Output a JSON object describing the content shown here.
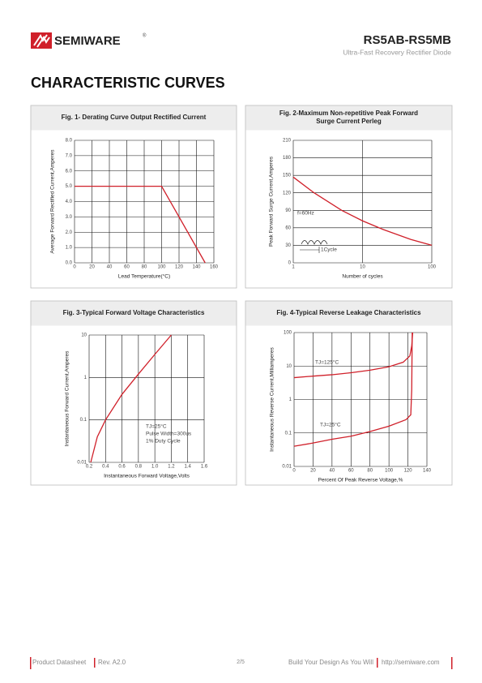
{
  "header": {
    "brand": "SEMIWARE",
    "registered": "®",
    "part": "RS5AB-RS5MB",
    "subtitle": "Ultra-Fast Recovery Rectifier Diode"
  },
  "section_title": "CHARACTERISTIC CURVES",
  "chart_data": [
    {
      "type": "line",
      "title": [
        "Fig. 1- Derating Curve Output Rectified Current"
      ],
      "xlabel": "Lead Temperature(°C)",
      "ylabel": "Average Forward Rectified Current,Amperes",
      "xlim": [
        0,
        160
      ],
      "ylim": [
        0,
        8
      ],
      "xticks": [
        0,
        20,
        40,
        60,
        80,
        100,
        120,
        140,
        160
      ],
      "yticks": [
        {
          "value": 0,
          "label": "0.0"
        },
        {
          "value": 1,
          "label": "1.0"
        },
        {
          "value": 2,
          "label": "2.0"
        },
        {
          "value": 3,
          "label": "3.0"
        },
        {
          "value": 4,
          "label": "4.0"
        },
        {
          "value": 5,
          "label": "5.0"
        },
        {
          "value": 6,
          "label": "6.0"
        },
        {
          "value": 7,
          "label": "7.0"
        },
        {
          "value": 8,
          "label": "8.0"
        }
      ],
      "grid": true,
      "series": [
        {
          "color": "#d0202a",
          "x": [
            0,
            100,
            150
          ],
          "values": [
            5,
            5,
            0
          ]
        }
      ],
      "annotations": []
    },
    {
      "type": "line",
      "title": [
        "Fig. 2-Maximum Non-repetitive Peak Forward",
        "Surge Current Perleg"
      ],
      "xlabel": "Number of cycles",
      "ylabel": "Peak Forward Surge Current,Amperes",
      "xscale": "log",
      "xlim": [
        1,
        100
      ],
      "ylim": [
        0,
        210
      ],
      "xticks": [
        1,
        10,
        100
      ],
      "yticks": [
        0,
        30,
        60,
        90,
        120,
        150,
        180,
        210
      ],
      "grid": true,
      "series": [
        {
          "color": "#d0202a",
          "x": [
            1,
            2,
            5,
            10,
            20,
            50,
            100
          ],
          "values": [
            147,
            120,
            90,
            72,
            57,
            40,
            30
          ]
        }
      ],
      "annotations": [
        "f=60Hz",
        "1Cycle"
      ]
    },
    {
      "type": "line",
      "title": [
        "Fig. 3-Typical Forward Voltage Characteristics"
      ],
      "xlabel": "Instantaneous Forward Voltage,Volts",
      "ylabel": "Instantaneous Forward Current,Amperes",
      "yscale": "log",
      "xlim": [
        0.2,
        1.6
      ],
      "ylim": [
        0.01,
        10
      ],
      "xticks": [
        0.2,
        0.4,
        0.6,
        0.8,
        {
          "value": 1,
          "label": "1.0"
        },
        1.2,
        1.4,
        1.6
      ],
      "yticks": [
        0.01,
        0.1,
        1,
        10
      ],
      "grid": true,
      "series": [
        {
          "color": "#d0202a",
          "x": [
            0.22,
            0.3,
            0.4,
            0.6,
            0.8,
            1.0,
            1.2
          ],
          "values": [
            0.01,
            0.04,
            0.1,
            0.4,
            1.2,
            3.5,
            10
          ]
        }
      ],
      "annotations": [
        "TJ=25°C",
        "Pulse Width=300us",
        "1% Duty Cycle"
      ]
    },
    {
      "type": "line",
      "title": [
        "Fig. 4-Typical Reverse Leakage Characteristics"
      ],
      "xlabel": "Percent Of Peak Reverse Voltage,%",
      "ylabel": "Instantaneous Reverse Current,Milliamperes",
      "yscale": "log",
      "xlim": [
        0,
        140
      ],
      "ylim": [
        0.01,
        100
      ],
      "xticks": [
        0,
        20,
        40,
        60,
        80,
        100,
        120,
        140
      ],
      "yticks": [
        0.01,
        0.1,
        1,
        10,
        100
      ],
      "grid": true,
      "series": [
        {
          "color": "#d0202a",
          "x": [
            0,
            20,
            40,
            60,
            80,
            100,
            115,
            122,
            124,
            125
          ],
          "values": [
            4.5,
            5,
            5.5,
            6.3,
            7.5,
            9.5,
            13,
            20,
            40,
            100
          ]
        },
        {
          "color": "#d0202a",
          "x": [
            0,
            20,
            40,
            60,
            80,
            100,
            118,
            123,
            124,
            124.5
          ],
          "values": [
            0.04,
            0.05,
            0.065,
            0.08,
            0.11,
            0.16,
            0.25,
            0.35,
            2,
            100
          ]
        }
      ],
      "annotations": [
        "TJ=125°C",
        "TJ=25°C"
      ]
    }
  ],
  "footer": {
    "doc": "Product Datasheet",
    "rev": "Rev. A2.0",
    "page": "2/5",
    "slogan": "Build Your Design As You Will",
    "url": "http://semiware.com"
  }
}
